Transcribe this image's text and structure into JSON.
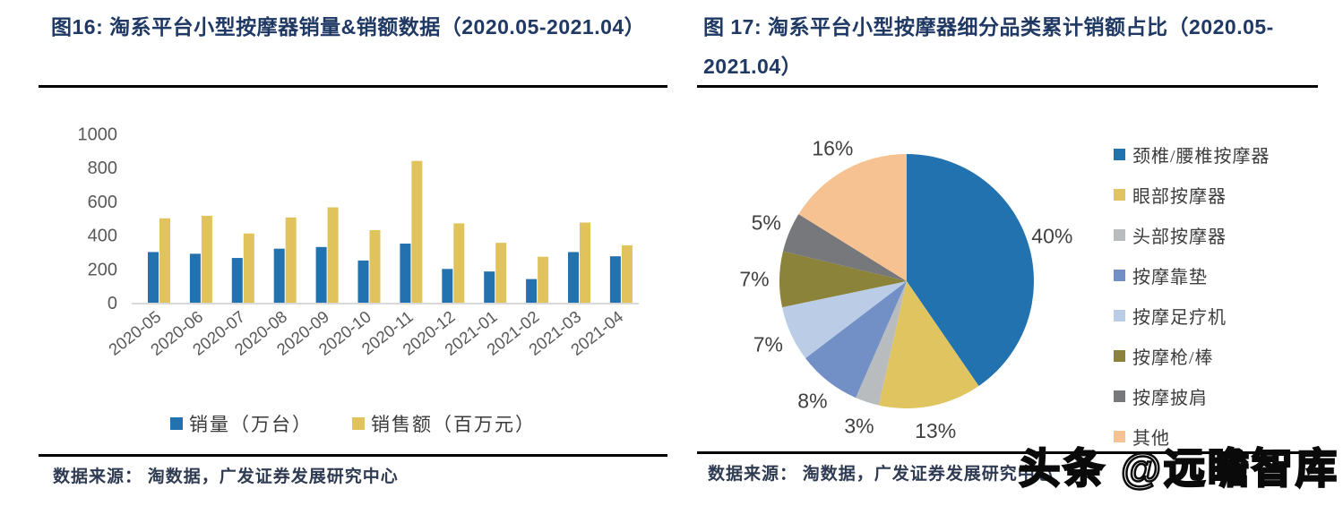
{
  "figures": {
    "left": {
      "title": "图16:  淘系平台小型按摩器销量&销额数据（2020.05-2021.04）",
      "source_label": "数据来源：  淘数据，广发证券发展研究中心"
    },
    "right": {
      "title": "图 17:  淘系平台小型按摩器细分品类累计销额占比（2020.05-2021.04）",
      "source_label": "数据来源：  淘数据，广发证券发展研究中心"
    }
  },
  "watermark": {
    "text": "头条 @远瞻智库"
  },
  "colors": {
    "title_navy": "#1F3864",
    "axis_text": "#595959",
    "axis_line": "#D9D9D9",
    "pie_label_text": "#404040",
    "rule_black": "#000000"
  },
  "chart_data": [
    {
      "type": "bar",
      "title": "淘系平台小型按摩器销量&销额数据（2020.05-2021.04）",
      "categories": [
        "2020-05",
        "2020-06",
        "2020-07",
        "2020-08",
        "2020-09",
        "2020-10",
        "2020-11",
        "2020-12",
        "2021-01",
        "2021-02",
        "2021-03",
        "2021-04"
      ],
      "series": [
        {
          "name": "销量（万台）",
          "color": "#2272B0",
          "values": [
            300,
            290,
            265,
            320,
            330,
            250,
            350,
            200,
            185,
            140,
            300,
            275
          ]
        },
        {
          "name": "销售额（百万元）",
          "color": "#E0C35C",
          "values": [
            500,
            515,
            410,
            505,
            565,
            430,
            840,
            470,
            355,
            272,
            475,
            340
          ]
        }
      ],
      "xlabel": "",
      "ylabel": "",
      "ylim": [
        0,
        1000
      ],
      "ytick_step": 200,
      "grid": false,
      "legend_position": "bottom"
    },
    {
      "type": "pie",
      "title": "淘系平台小型按摩器细分品类累计销额占比（2020.05-2021.04）",
      "labels": [
        "颈椎/腰椎按摩器",
        "眼部按摩器",
        "头部按摩器",
        "按摩靠垫",
        "按摩足疗机",
        "按摩枪/棒",
        "按摩披肩",
        "其他"
      ],
      "values": [
        40,
        13,
        3,
        8,
        7,
        7,
        5,
        16
      ],
      "unit": "%",
      "colors": [
        "#2272B0",
        "#DFC45F",
        "#B9BCBF",
        "#7290C5",
        "#BACCE6",
        "#8B8339",
        "#77787B",
        "#F6C292"
      ],
      "start_angle_deg": 0,
      "direction": "clockwise",
      "legend_position": "right"
    }
  ]
}
